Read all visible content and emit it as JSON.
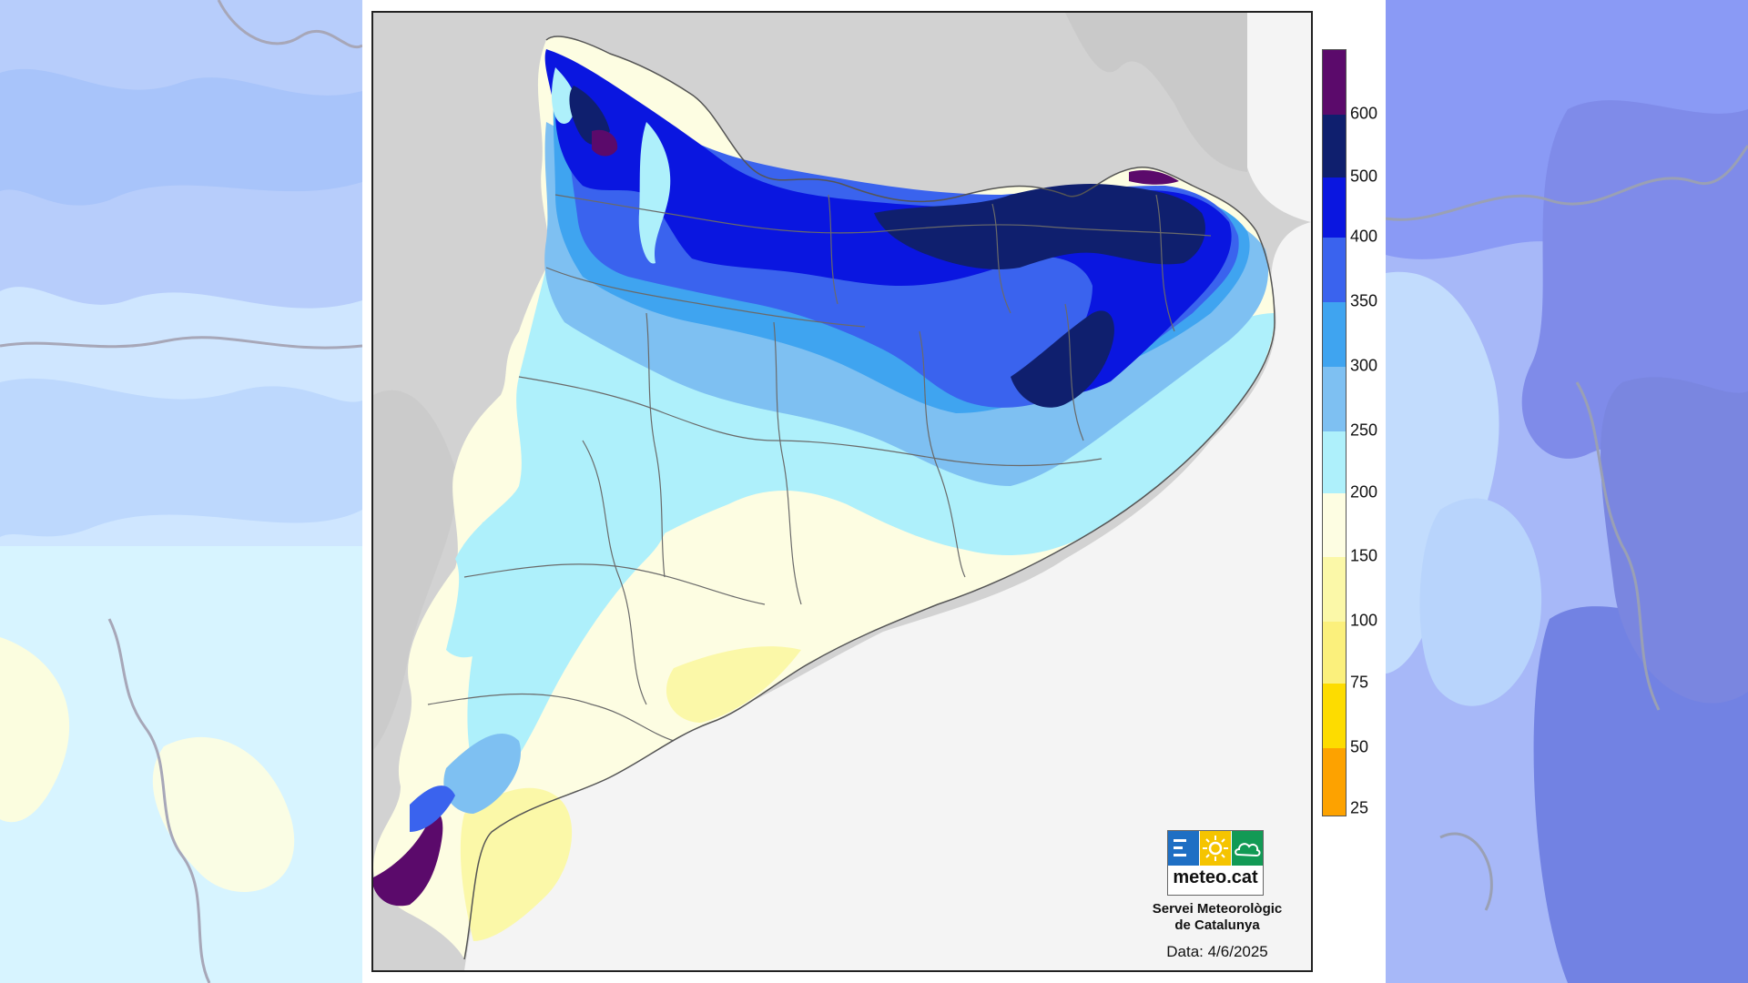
{
  "legend": {
    "classes": [
      {
        "label": "",
        "color": "#5b0a6b"
      },
      {
        "label": "600",
        "color": "#0f1f6e"
      },
      {
        "label": "500",
        "color": "#0a16e0"
      },
      {
        "label": "400",
        "color": "#3a63ee"
      },
      {
        "label": "350",
        "color": "#3fa4f0"
      },
      {
        "label": "300",
        "color": "#7ec0f2"
      },
      {
        "label": "250",
        "color": "#aef0fb"
      },
      {
        "label": "200",
        "color": "#fdfde2"
      },
      {
        "label": "150",
        "color": "#fbf8a8"
      },
      {
        "label": "100",
        "color": "#fbf07c"
      },
      {
        "label": "75",
        "color": "#fddc00"
      },
      {
        "label": "50",
        "color": "#fda200"
      },
      {
        "label": "25",
        "color": ""
      }
    ]
  },
  "logo": {
    "text": "meteo.cat",
    "colors": {
      "blue": "#1e6fc4",
      "yellow": "#f5c400",
      "green": "#129a55"
    }
  },
  "org": {
    "line1": "Servei Meteorològic",
    "line2": "de Catalunya"
  },
  "date": "Data: 4/6/2025",
  "palette": {
    "land_gray": "#d2d2d2",
    "sea": "#f4f4f4",
    "border": "#6a6a6a"
  }
}
